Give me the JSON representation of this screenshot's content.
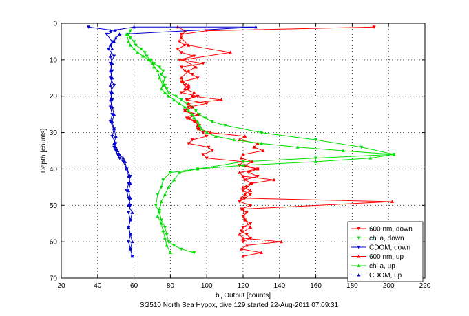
{
  "chart_data": {
    "type": "line",
    "title": "",
    "footer": "SG510 North Sea Hypox, dive 129 started 22-Aug-2011 07:09:31",
    "xlabel": "b",
    "xlabel_sub": "b",
    "xlabel_rest": " Output [counts]",
    "ylabel": "Depth [counts]",
    "xlim": [
      20,
      220
    ],
    "ylim": [
      0,
      70
    ],
    "y_reversed": true,
    "xticks": [
      20,
      40,
      60,
      80,
      100,
      120,
      140,
      160,
      180,
      200,
      220
    ],
    "yticks": [
      0,
      10,
      20,
      30,
      40,
      50,
      60,
      70
    ],
    "grid": "dotted",
    "legend_position": "bottom-right",
    "series": [
      {
        "name": "600 nm, down",
        "color": "#ff0000",
        "marker": "triangle-down",
        "x": [
          192,
          100,
          86,
          85,
          88,
          84,
          86,
          93,
          85,
          98,
          86,
          88,
          92,
          95,
          86,
          88,
          90,
          86,
          95,
          89,
          100,
          90,
          88,
          92,
          89,
          93,
          96,
          95,
          98,
          100,
          92,
          90,
          101,
          103,
          98,
          100,
          120,
          118,
          128,
          123,
          128,
          121,
          125,
          122,
          120,
          124,
          121,
          118,
          124,
          119,
          122,
          120,
          121,
          124,
          120,
          119,
          122,
          124,
          120
        ],
        "y": [
          1,
          2,
          3,
          5,
          6,
          7,
          8,
          9,
          10,
          11,
          12,
          13,
          14,
          15,
          16,
          17,
          18,
          19,
          20,
          21,
          22,
          23,
          24,
          25,
          26,
          27,
          28,
          29,
          30,
          31,
          32,
          33,
          34,
          35,
          36,
          37,
          38,
          39,
          40,
          41,
          42,
          43,
          44,
          45,
          46,
          47,
          48,
          49,
          50,
          51,
          52,
          53,
          54,
          55,
          56,
          57,
          58,
          59,
          60
        ]
      },
      {
        "name": "chl a, down",
        "color": "#00e000",
        "marker": "triangle-down",
        "x": [
          58,
          57,
          58,
          60,
          61,
          64,
          66,
          67,
          69,
          71,
          74,
          76,
          75,
          77,
          76,
          77,
          78,
          79,
          83,
          86,
          89,
          92,
          94,
          96,
          99,
          103,
          110,
          130,
          160,
          185,
          203,
          160,
          120,
          95,
          80,
          76,
          75,
          73,
          72,
          74,
          75,
          77,
          78,
          79,
          82,
          86,
          93
        ],
        "y": [
          2,
          3,
          4,
          5,
          6,
          7,
          8,
          9,
          10,
          11,
          12,
          13,
          14,
          15,
          16,
          17,
          18,
          19,
          20,
          21,
          22,
          23,
          24,
          25,
          26,
          27,
          28,
          30,
          32,
          34,
          36,
          37,
          38,
          40,
          41,
          43,
          45,
          47,
          50,
          52,
          54,
          56,
          58,
          60,
          61,
          62,
          63
        ]
      },
      {
        "name": "CDOM, down",
        "color": "#0000cc",
        "marker": "triangle-down",
        "x": [
          35,
          50,
          45,
          48,
          46,
          49,
          47,
          48,
          47,
          49,
          47,
          48,
          47,
          48,
          47,
          49,
          48,
          50,
          49,
          50,
          51,
          52,
          54,
          56,
          58,
          57,
          56,
          57,
          58,
          57,
          58,
          57,
          58,
          57,
          58,
          59
        ],
        "y": [
          1,
          2,
          3,
          5,
          7,
          9,
          11,
          13,
          15,
          17,
          19,
          21,
          23,
          25,
          27,
          29,
          31,
          33,
          34,
          35,
          36,
          37,
          38,
          40,
          42,
          44,
          46,
          48,
          50,
          52,
          54,
          56,
          58,
          60,
          62,
          64
        ]
      },
      {
        "name": "600 nm, up",
        "color": "#ff0000",
        "marker": "triangle-up",
        "x": [
          120,
          130,
          119,
          122,
          141,
          120,
          118,
          124,
          121,
          120,
          202,
          119,
          121,
          124,
          120,
          124,
          137,
          120,
          118,
          128,
          121,
          125,
          119,
          120,
          131,
          126,
          128,
          118,
          121,
          102,
          96,
          95,
          94,
          90,
          95,
          88,
          92,
          90,
          108,
          92,
          93,
          88,
          90,
          87,
          86,
          90,
          94,
          87,
          113,
          90,
          86,
          88,
          84
        ],
        "y": [
          64,
          63,
          62,
          61,
          60,
          59,
          58,
          56,
          54,
          51,
          49,
          48,
          47,
          46,
          45,
          44,
          43,
          42,
          41,
          40,
          39,
          38,
          37,
          36,
          35,
          34,
          33,
          32,
          31,
          30,
          29,
          28,
          27,
          26,
          25,
          24,
          23,
          22,
          21,
          20,
          19,
          18,
          17,
          16,
          15,
          13,
          12,
          10,
          8,
          6,
          4,
          2,
          1
        ]
      },
      {
        "name": "chl a, up",
        "color": "#00e000",
        "marker": "triangle-up",
        "x": [
          80,
          78,
          77,
          76,
          75,
          73,
          74,
          75,
          77,
          79,
          82,
          85,
          95,
          120,
          160,
          190,
          203,
          175,
          150,
          130,
          115,
          105,
          100,
          97,
          96,
          95,
          93,
          92,
          90,
          88,
          85,
          82,
          79,
          77,
          75,
          76,
          74,
          73,
          71,
          70,
          68,
          65,
          62,
          60,
          58,
          57,
          56
        ],
        "y": [
          63,
          61,
          59,
          57,
          55,
          53,
          51,
          49,
          47,
          45,
          43,
          41,
          40,
          39,
          38,
          37,
          36,
          35,
          34,
          33,
          32,
          31,
          30,
          29,
          28,
          27,
          26,
          25,
          24,
          23,
          22,
          21,
          20,
          19,
          18,
          17,
          15,
          13,
          12,
          11,
          10,
          9,
          8,
          7,
          6,
          5,
          3
        ]
      },
      {
        "name": "CDOM, up",
        "color": "#0000cc",
        "marker": "triangle-up",
        "x": [
          59,
          58,
          59,
          58,
          57,
          58,
          59,
          57,
          58,
          57,
          58,
          57,
          56,
          55,
          54,
          52,
          51,
          50,
          49,
          50,
          49,
          48,
          49,
          48,
          47,
          48,
          47,
          48,
          47,
          48,
          47,
          48,
          47,
          49,
          50,
          52,
          127,
          60,
          47
        ],
        "y": [
          64,
          62,
          60,
          58,
          56,
          54,
          52,
          50,
          48,
          46,
          44,
          42,
          40,
          38,
          37,
          36,
          35,
          34,
          33,
          31,
          29,
          27,
          25,
          23,
          21,
          19,
          17,
          15,
          13,
          11,
          9,
          7,
          6,
          5,
          4,
          3,
          1,
          1,
          2
        ]
      }
    ]
  }
}
